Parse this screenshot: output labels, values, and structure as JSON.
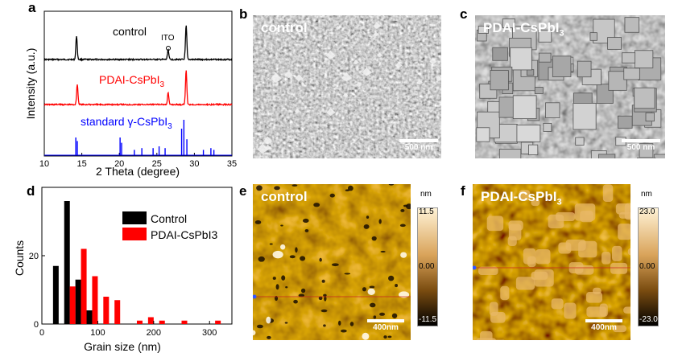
{
  "panels": {
    "a": "a",
    "b": "b",
    "c": "c",
    "d": "d",
    "e": "e",
    "f": "f"
  },
  "xrd": {
    "ylabel": "Intensity (a.u.)",
    "xlabel": "2 Theta (degree)",
    "ito_label": "ITO",
    "curve_control": "control",
    "curve_pdai": "PDAI-CsPbI",
    "curve_pdai_sub": "3",
    "curve_standard": "standard γ-CsPbI",
    "curve_standard_sub": "3",
    "colors": {
      "control": "#000000",
      "pdai": "#ff0000",
      "standard": "#0000ff"
    }
  },
  "sem": {
    "b_title": "control",
    "c_title": "PDAI-CsPbI",
    "c_title_sub": "3",
    "b_scale": "500 nm",
    "c_scale": "500 nm"
  },
  "afm": {
    "e_title": "control",
    "f_title": "PDAI-CsPbI",
    "f_title_sub": "3",
    "e_scale": "400nm",
    "f_scale": "400nm",
    "e_unit": "nm",
    "e_max": "11.5",
    "e_mid": "0.00",
    "e_min": "-11.5",
    "f_unit": "nm",
    "f_max": "23.0",
    "f_mid": "0.00",
    "f_min": "-23.0"
  },
  "chart_data": [
    {
      "type": "line",
      "panel": "a",
      "xlabel": "2 Theta (degree)",
      "ylabel": "Intensity (a.u.)",
      "xlim": [
        10,
        35
      ],
      "xticks": [
        10,
        15,
        20,
        25,
        30,
        35
      ],
      "series": [
        {
          "name": "control",
          "peaks": [
            [
              14.3,
              0.7
            ],
            [
              26.5,
              0.3
            ],
            [
              28.9,
              1.0
            ]
          ]
        },
        {
          "name": "PDAI-CsPbI3",
          "peaks": [
            [
              14.4,
              0.6
            ],
            [
              26.5,
              0.35
            ],
            [
              28.9,
              1.0
            ]
          ]
        },
        {
          "name": "standard γ-CsPbI3",
          "sticks": [
            [
              14.2,
              0.5
            ],
            [
              14.4,
              0.4
            ],
            [
              20.1,
              0.5
            ],
            [
              20.3,
              0.35
            ],
            [
              22.0,
              0.15
            ],
            [
              23.0,
              0.2
            ],
            [
              24.5,
              0.2
            ],
            [
              25.3,
              0.25
            ],
            [
              26.1,
              0.2
            ],
            [
              28.3,
              0.75
            ],
            [
              28.6,
              1.0
            ],
            [
              29.0,
              0.45
            ],
            [
              31.2,
              0.15
            ],
            [
              32.2,
              0.2
            ],
            [
              32.6,
              0.15
            ]
          ]
        }
      ],
      "annotation": "ITO"
    },
    {
      "type": "bar",
      "panel": "d",
      "xlabel": "Grain size (nm)",
      "ylabel": "Counts",
      "xlim": [
        0,
        340
      ],
      "ylim": [
        0,
        40
      ],
      "xticks": [
        0,
        100,
        200,
        300
      ],
      "yticks": [
        0,
        20
      ],
      "legend": "top-right",
      "series": [
        {
          "name": "Control",
          "x": [
            25,
            45,
            65,
            85
          ],
          "values": [
            17,
            36,
            13,
            4
          ]
        },
        {
          "name": "PDAI-CsPbI3",
          "x": [
            55,
            75,
            95,
            115,
            135,
            155,
            175,
            195,
            215,
            255,
            315
          ],
          "values": [
            11,
            22,
            14,
            8,
            7,
            0,
            1,
            2,
            1,
            1,
            1
          ]
        }
      ],
      "colors": {
        "Control": "#000000",
        "PDAI-CsPbI3": "#ff0000"
      }
    }
  ]
}
